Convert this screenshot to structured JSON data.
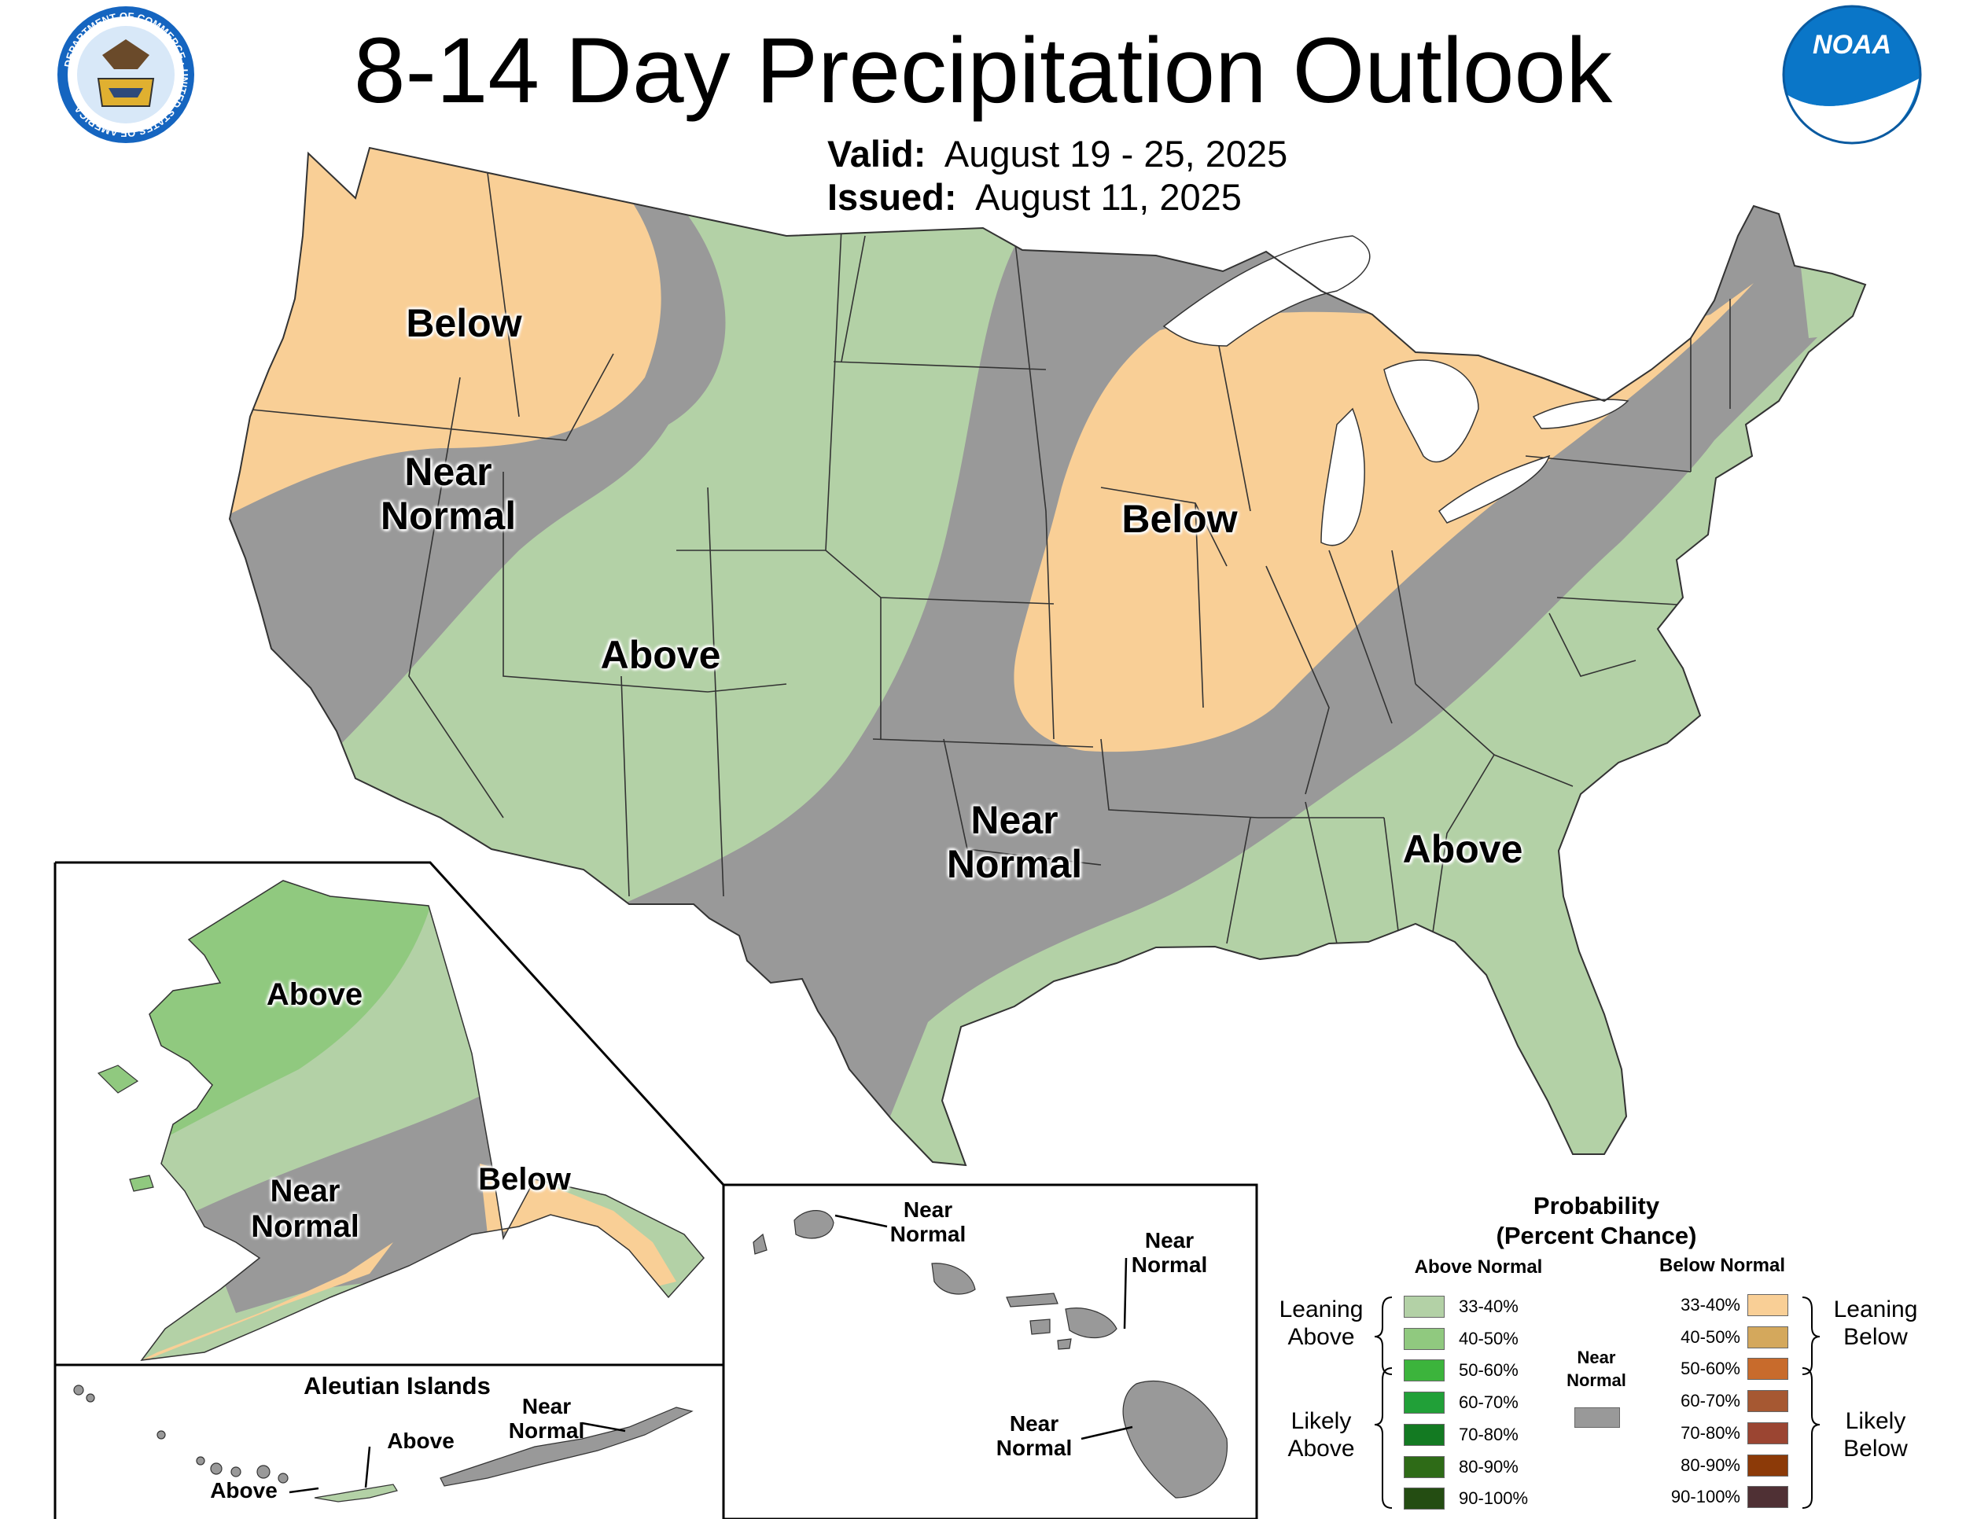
{
  "header": {
    "title": "8-14 Day Precipitation Outlook",
    "valid_label": "Valid:",
    "valid_value": "August 19 - 25, 2025",
    "issued_label": "Issued:",
    "issued_value": "August 11, 2025"
  },
  "logos": {
    "commerce_seal": "DEPARTMENT OF COMMERCE · UNITED STATES OF AMERICA",
    "noaa": "NOAA"
  },
  "colors": {
    "above_33_40": "#b3d1a6",
    "above_40_50": "#90c97f",
    "above_50_60": "#3cb43c",
    "above_60_70": "#21a038",
    "above_70_80": "#137a22",
    "above_80_90": "#2e6b17",
    "above_90_100": "#244d12",
    "below_33_40": "#f9cf96",
    "below_40_50": "#d4a85c",
    "below_50_60": "#c86b2c",
    "below_60_70": "#a65832",
    "below_70_80": "#9b4532",
    "below_80_90": "#8c3a08",
    "below_90_100": "#4f3034",
    "near_normal": "#999999",
    "water": "#ffffff",
    "boundary": "#333333"
  },
  "map_labels": {
    "conus": {
      "nw_below": "Below",
      "west_near_1": "Near",
      "west_near_2": "Normal",
      "sw_above": "Above",
      "mw_below": "Below",
      "plains_near_1": "Near",
      "plains_near_2": "Normal",
      "se_above": "Above"
    },
    "alaska": {
      "above": "Above",
      "near_1": "Near",
      "near_2": "Normal",
      "below": "Below"
    },
    "aleutians": {
      "title": "Aleutian Islands",
      "above_1": "Above",
      "above_2": "Above",
      "near_1": "Near",
      "near_2": "Normal"
    },
    "hawaii": {
      "kauai_near_1": "Near",
      "kauai_near_2": "Normal",
      "maui_near_1": "Near",
      "maui_near_2": "Normal",
      "big_near_1": "Near",
      "big_near_2": "Normal"
    }
  },
  "legend": {
    "title_1": "Probability",
    "title_2": "(Percent Chance)",
    "above_header": "Above Normal",
    "below_header": "Below Normal",
    "near_1": "Near",
    "near_2": "Normal",
    "leaning_above_1": "Leaning",
    "leaning_above_2": "Above",
    "likely_above_1": "Likely",
    "likely_above_2": "Above",
    "leaning_below_1": "Leaning",
    "leaning_below_2": "Below",
    "likely_below_1": "Likely",
    "likely_below_2": "Below",
    "above_bins": [
      "33-40%",
      "40-50%",
      "50-60%",
      "60-70%",
      "70-80%",
      "80-90%",
      "90-100%"
    ],
    "below_bins": [
      "33-40%",
      "40-50%",
      "50-60%",
      "60-70%",
      "70-80%",
      "80-90%",
      "90-100%"
    ]
  }
}
